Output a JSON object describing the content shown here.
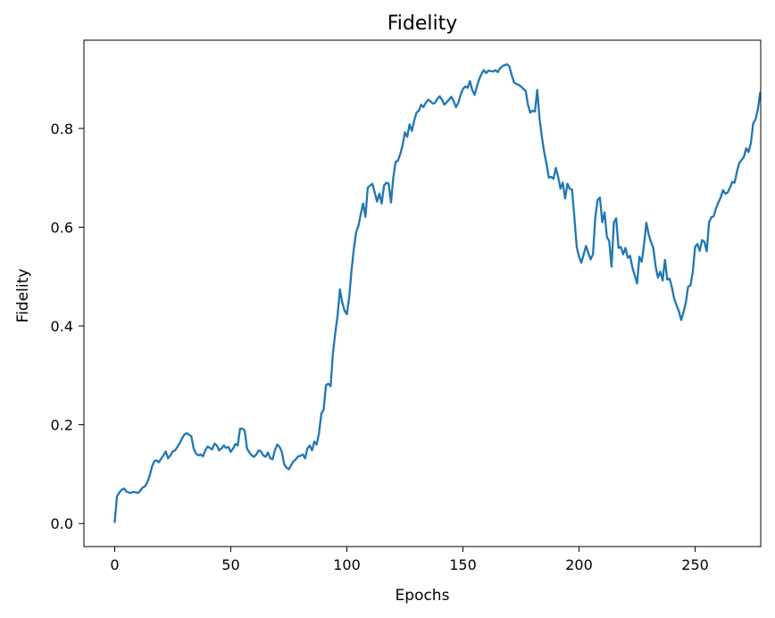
{
  "chart_data": {
    "type": "line",
    "title": "Fidelity",
    "xlabel": "Epochs",
    "ylabel": "Fidelity",
    "xlim": [
      -13.25,
      278.25
    ],
    "ylim": [
      -0.0466,
      0.9786
    ],
    "xticks": [
      0,
      50,
      100,
      150,
      200,
      250
    ],
    "yticks": [
      0.0,
      0.2,
      0.4,
      0.6,
      0.8
    ],
    "xtick_labels": [
      "0",
      "50",
      "100",
      "150",
      "200",
      "250"
    ],
    "ytick_labels": [
      "0.0",
      "0.2",
      "0.4",
      "0.6",
      "0.8"
    ],
    "grid": false,
    "line_color": "#1f77b4",
    "series": [
      {
        "values": [
          0.003,
          0.055,
          0.063,
          0.068,
          0.071,
          0.065,
          0.063,
          0.062,
          0.064,
          0.063,
          0.062,
          0.066,
          0.073,
          0.075,
          0.083,
          0.096,
          0.114,
          0.126,
          0.128,
          0.124,
          0.131,
          0.138,
          0.146,
          0.132,
          0.138,
          0.146,
          0.148,
          0.155,
          0.163,
          0.172,
          0.18,
          0.183,
          0.18,
          0.177,
          0.152,
          0.142,
          0.138,
          0.14,
          0.136,
          0.148,
          0.156,
          0.153,
          0.15,
          0.162,
          0.158,
          0.148,
          0.152,
          0.158,
          0.153,
          0.155,
          0.145,
          0.152,
          0.161,
          0.158,
          0.192,
          0.192,
          0.188,
          0.152,
          0.144,
          0.138,
          0.135,
          0.14,
          0.148,
          0.146,
          0.138,
          0.135,
          0.144,
          0.132,
          0.13,
          0.148,
          0.16,
          0.155,
          0.145,
          0.12,
          0.113,
          0.11,
          0.118,
          0.126,
          0.13,
          0.136,
          0.137,
          0.14,
          0.132,
          0.152,
          0.158,
          0.148,
          0.166,
          0.16,
          0.183,
          0.222,
          0.231,
          0.28,
          0.283,
          0.278,
          0.345,
          0.386,
          0.421,
          0.474,
          0.448,
          0.431,
          0.424,
          0.458,
          0.512,
          0.556,
          0.59,
          0.603,
          0.627,
          0.648,
          0.621,
          0.68,
          0.684,
          0.688,
          0.67,
          0.652,
          0.668,
          0.648,
          0.684,
          0.69,
          0.688,
          0.65,
          0.7,
          0.732,
          0.735,
          0.748,
          0.766,
          0.792,
          0.783,
          0.808,
          0.795,
          0.816,
          0.832,
          0.836,
          0.848,
          0.843,
          0.852,
          0.858,
          0.855,
          0.85,
          0.852,
          0.86,
          0.865,
          0.858,
          0.848,
          0.853,
          0.858,
          0.864,
          0.855,
          0.843,
          0.852,
          0.868,
          0.88,
          0.885,
          0.882,
          0.896,
          0.878,
          0.868,
          0.885,
          0.9,
          0.91,
          0.918,
          0.912,
          0.917,
          0.916,
          0.915,
          0.918,
          0.914,
          0.922,
          0.926,
          0.928,
          0.93,
          0.925,
          0.908,
          0.893,
          0.89,
          0.888,
          0.885,
          0.88,
          0.876,
          0.848,
          0.832,
          0.836,
          0.834,
          0.878,
          0.82,
          0.782,
          0.752,
          0.728,
          0.7,
          0.702,
          0.698,
          0.72,
          0.702,
          0.678,
          0.69,
          0.658,
          0.688,
          0.678,
          0.676,
          0.62,
          0.56,
          0.54,
          0.528,
          0.545,
          0.562,
          0.548,
          0.535,
          0.545,
          0.62,
          0.655,
          0.66,
          0.61,
          0.63,
          0.58,
          0.572,
          0.52,
          0.61,
          0.618,
          0.558,
          0.56,
          0.545,
          0.558,
          0.538,
          0.542,
          0.518,
          0.502,
          0.486,
          0.54,
          0.53,
          0.565,
          0.609,
          0.585,
          0.57,
          0.558,
          0.52,
          0.498,
          0.51,
          0.492,
          0.534,
          0.494,
          0.496,
          0.478,
          0.455,
          0.442,
          0.43,
          0.412,
          0.428,
          0.448,
          0.48,
          0.482,
          0.51,
          0.56,
          0.566,
          0.552,
          0.574,
          0.57,
          0.551,
          0.61,
          0.62,
          0.622,
          0.638,
          0.65,
          0.66,
          0.675,
          0.668,
          0.67,
          0.68,
          0.692,
          0.69,
          0.712,
          0.73,
          0.736,
          0.742,
          0.76,
          0.752,
          0.77,
          0.81,
          0.818,
          0.838,
          0.872
        ]
      }
    ]
  }
}
